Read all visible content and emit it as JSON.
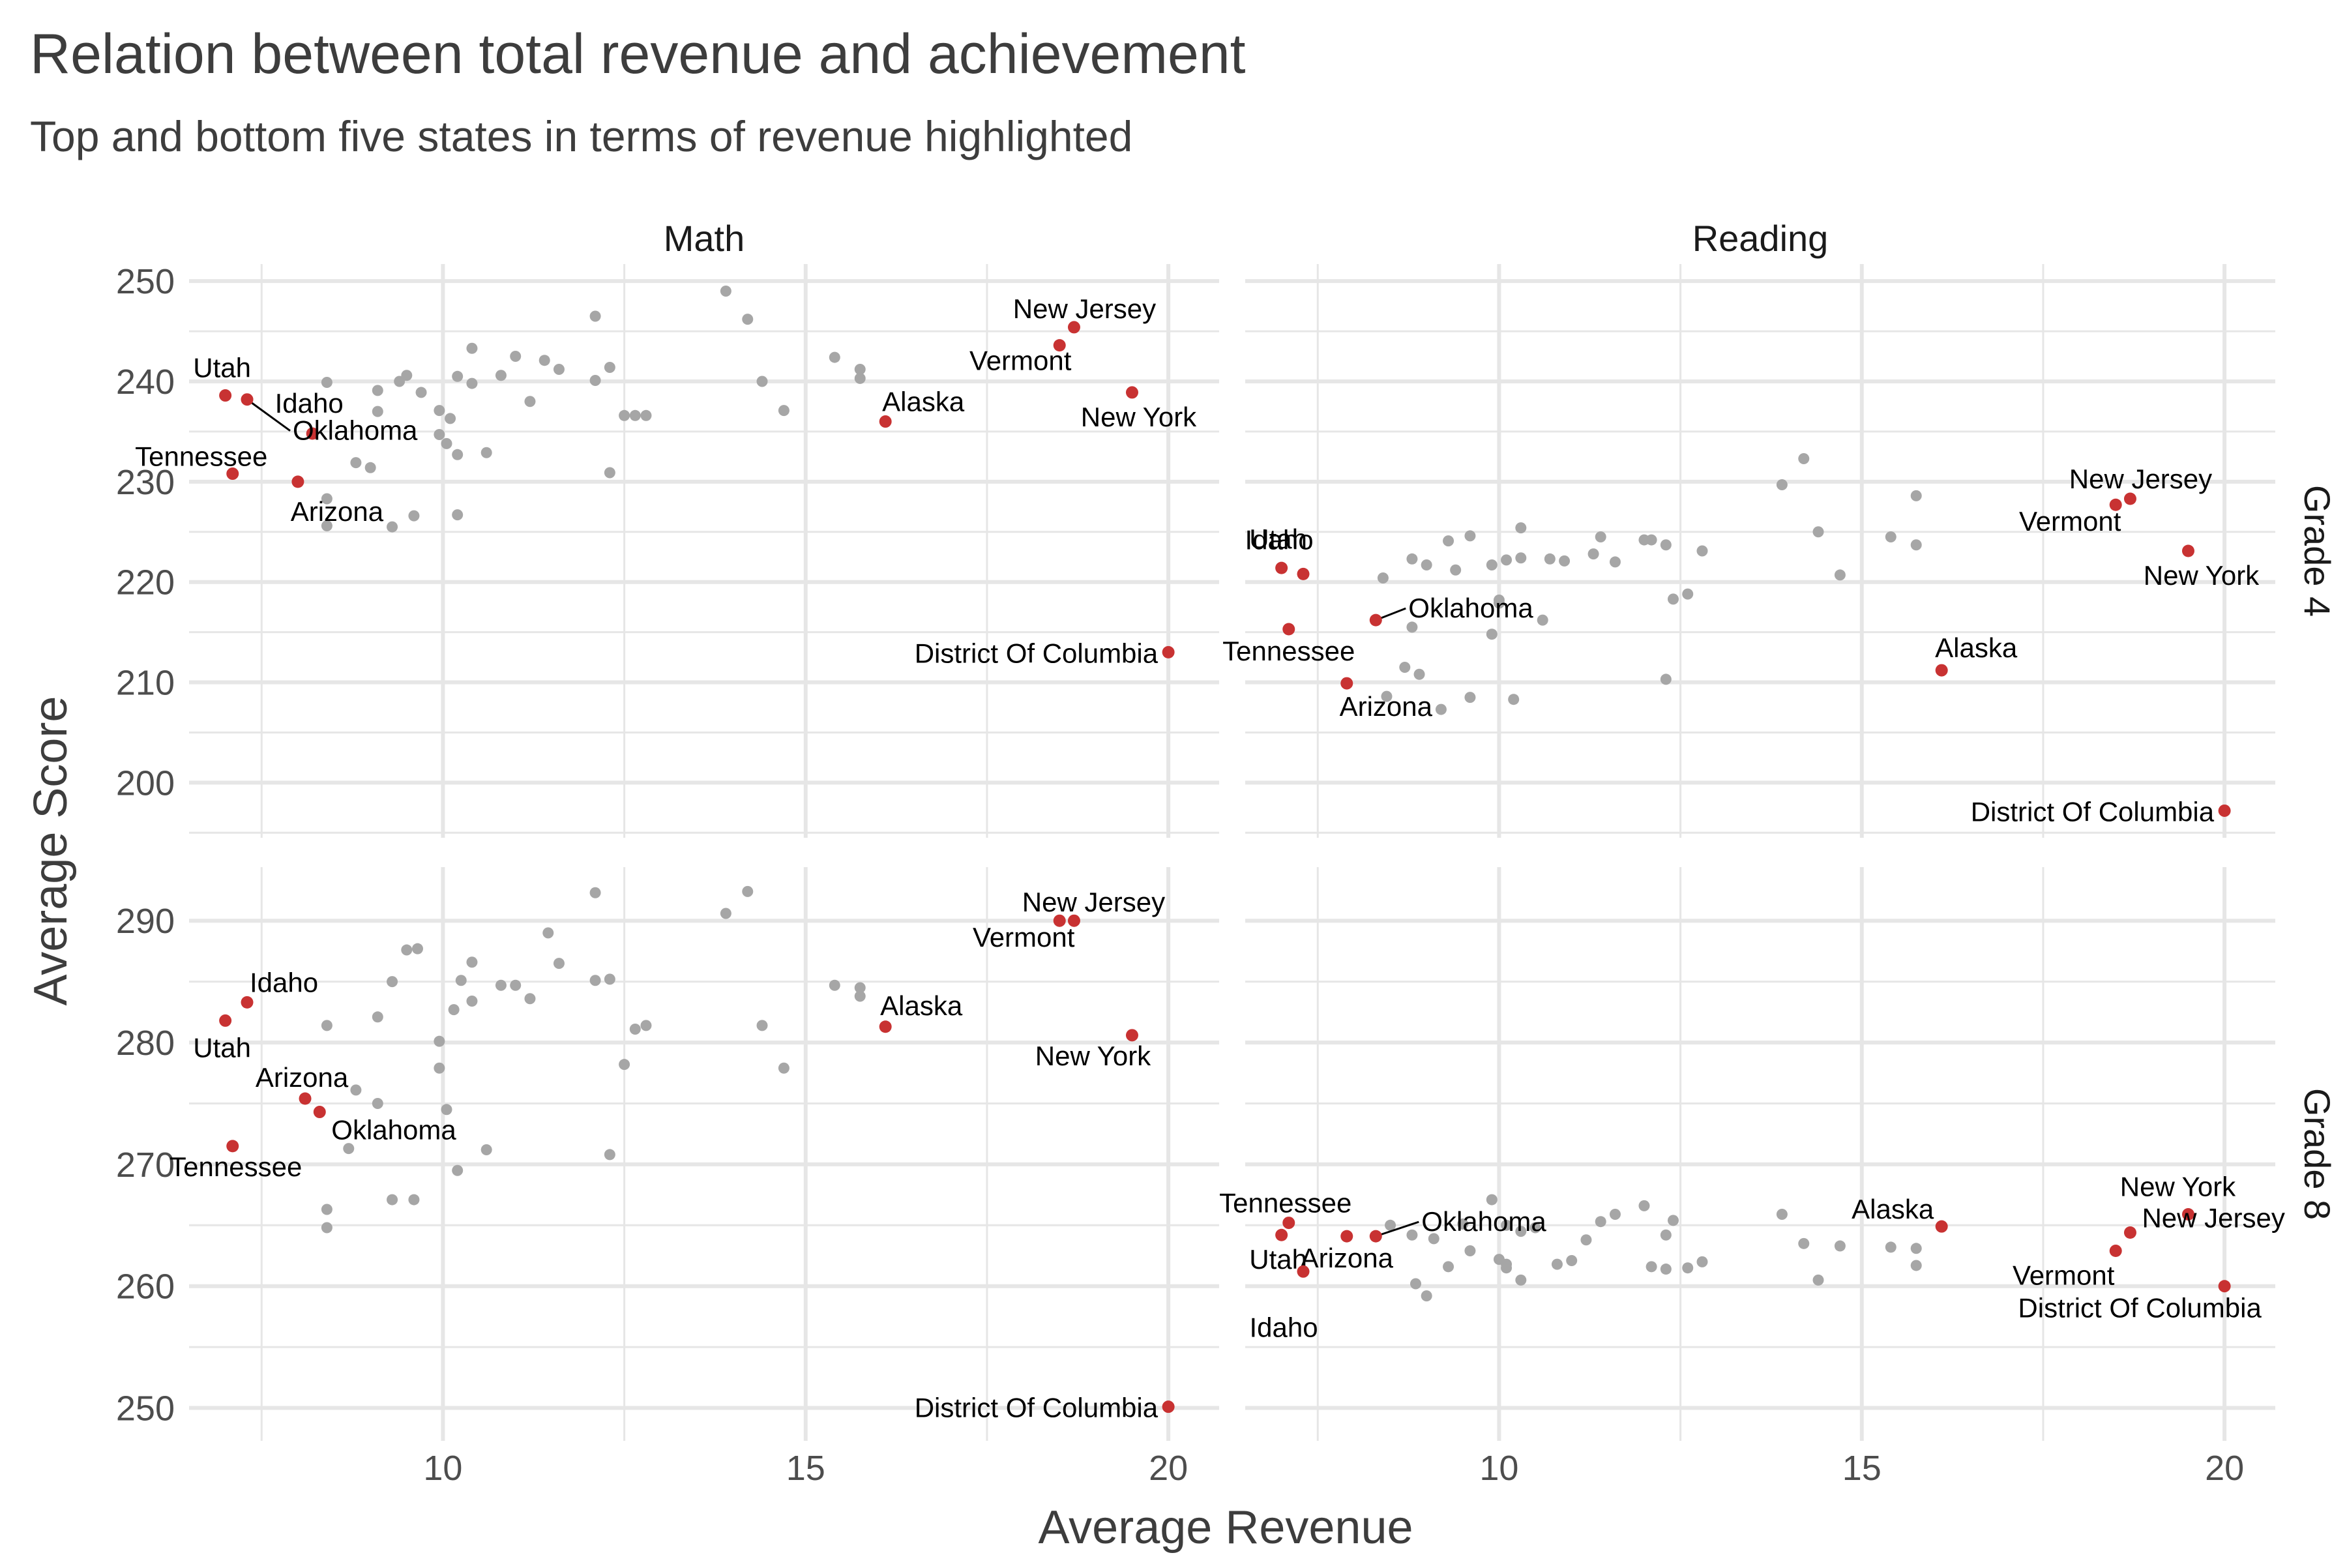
{
  "chart_data": {
    "type": "scatter",
    "title": "Relation between total revenue and achievement",
    "subtitle": "Top and bottom five states in terms of revenue highlighted",
    "xlabel": "Average Revenue",
    "ylabel": "Average Score",
    "colors": {
      "highlight": "#c83232",
      "other": "#a6a6a6",
      "text": "#3d3d3d",
      "grid": "#e6e6e6"
    },
    "x_ticks": [
      10,
      15,
      20
    ],
    "column_facets": [
      "Math",
      "Reading"
    ],
    "row_facets": [
      "Grade 4",
      "Grade 8"
    ],
    "panels": [
      {
        "column": "Math",
        "row": "Grade 4",
        "y_ticks": [
          200,
          210,
          220,
          230,
          240,
          250
        ],
        "highlighted": [
          {
            "label": "Utah",
            "x": 7.0,
            "y": 238.6
          },
          {
            "label": "Idaho",
            "x": 8.2,
            "y": 234.8
          },
          {
            "label": "Oklahoma",
            "x": 7.3,
            "y": 238.2
          },
          {
            "label": "Tennessee",
            "x": 7.1,
            "y": 230.8
          },
          {
            "label": "Arizona",
            "x": 8.0,
            "y": 230.0
          },
          {
            "label": "New Jersey",
            "x": 18.7,
            "y": 245.4
          },
          {
            "label": "Vermont",
            "x": 18.5,
            "y": 243.6
          },
          {
            "label": "New York",
            "x": 19.5,
            "y": 238.9
          },
          {
            "label": "Alaska",
            "x": 16.1,
            "y": 236.0
          },
          {
            "label": "District Of Columbia",
            "x": 20.0,
            "y": 213.0
          }
        ],
        "others": [
          [
            8.4,
            239.9
          ],
          [
            9.1,
            239.1
          ],
          [
            9.4,
            240.0
          ],
          [
            9.5,
            240.6
          ],
          [
            9.7,
            238.9
          ],
          [
            9.1,
            237.0
          ],
          [
            9.95,
            237.1
          ],
          [
            10.1,
            236.3
          ],
          [
            10.2,
            240.5
          ],
          [
            10.4,
            243.3
          ],
          [
            10.4,
            239.8
          ],
          [
            10.8,
            240.6
          ],
          [
            11.0,
            242.5
          ],
          [
            11.2,
            238.0
          ],
          [
            11.4,
            242.1
          ],
          [
            11.6,
            241.2
          ],
          [
            12.1,
            246.5
          ],
          [
            12.1,
            240.1
          ],
          [
            12.3,
            241.4
          ],
          [
            12.5,
            236.6
          ],
          [
            12.65,
            236.6
          ],
          [
            12.8,
            236.6
          ],
          [
            13.9,
            249.0
          ],
          [
            14.2,
            246.2
          ],
          [
            14.4,
            240.0
          ],
          [
            14.7,
            237.1
          ],
          [
            15.4,
            242.4
          ],
          [
            15.75,
            241.2
          ],
          [
            15.75,
            240.3
          ],
          [
            9.95,
            234.7
          ],
          [
            10.05,
            233.8
          ],
          [
            10.2,
            232.7
          ],
          [
            10.6,
            232.9
          ],
          [
            8.8,
            231.9
          ],
          [
            9.0,
            231.4
          ],
          [
            12.3,
            230.9
          ],
          [
            8.4,
            228.3
          ],
          [
            8.4,
            225.6
          ],
          [
            9.3,
            225.5
          ],
          [
            9.6,
            226.6
          ],
          [
            10.2,
            226.7
          ]
        ]
      },
      {
        "column": "Reading",
        "row": "Grade 4",
        "y_ticks": [
          200,
          210,
          220,
          230,
          240,
          250
        ],
        "highlighted": [
          {
            "label": "Utah",
            "x": 7.0,
            "y": 221.4
          },
          {
            "label": "Idaho",
            "x": 7.3,
            "y": 220.8
          },
          {
            "label": "Oklahoma",
            "x": 8.3,
            "y": 216.2
          },
          {
            "label": "Tennessee",
            "x": 7.1,
            "y": 215.3
          },
          {
            "label": "Arizona",
            "x": 7.9,
            "y": 209.9
          },
          {
            "label": "New Jersey",
            "x": 18.7,
            "y": 228.3
          },
          {
            "label": "Vermont",
            "x": 18.5,
            "y": 227.7
          },
          {
            "label": "New York",
            "x": 19.5,
            "y": 223.1
          },
          {
            "label": "Alaska",
            "x": 16.1,
            "y": 211.2
          },
          {
            "label": "District Of Columbia",
            "x": 20.0,
            "y": 197.2
          }
        ],
        "others": [
          [
            8.4,
            220.4
          ],
          [
            8.8,
            222.3
          ],
          [
            9.0,
            221.7
          ],
          [
            9.3,
            224.1
          ],
          [
            9.4,
            221.2
          ],
          [
            9.6,
            224.6
          ],
          [
            9.9,
            221.7
          ],
          [
            10.1,
            222.2
          ],
          [
            10.3,
            225.4
          ],
          [
            10.3,
            222.4
          ],
          [
            10.7,
            222.3
          ],
          [
            10.9,
            222.1
          ],
          [
            11.3,
            222.8
          ],
          [
            11.4,
            224.5
          ],
          [
            11.6,
            222.0
          ],
          [
            12.0,
            224.2
          ],
          [
            12.1,
            224.2
          ],
          [
            12.3,
            223.7
          ],
          [
            12.4,
            218.3
          ],
          [
            12.6,
            218.8
          ],
          [
            12.8,
            223.1
          ],
          [
            13.9,
            229.7
          ],
          [
            14.2,
            232.3
          ],
          [
            14.4,
            225.0
          ],
          [
            14.7,
            220.7
          ],
          [
            15.4,
            224.5
          ],
          [
            15.75,
            228.6
          ],
          [
            15.75,
            223.7
          ],
          [
            10.0,
            218.2
          ],
          [
            10.0,
            217.9
          ],
          [
            10.6,
            216.2
          ],
          [
            8.8,
            215.5
          ],
          [
            9.9,
            214.8
          ],
          [
            8.7,
            211.5
          ],
          [
            8.9,
            210.8
          ],
          [
            12.3,
            210.3
          ],
          [
            8.45,
            208.6
          ],
          [
            9.2,
            207.3
          ],
          [
            9.6,
            208.5
          ],
          [
            10.2,
            208.3
          ]
        ]
      },
      {
        "column": "Math",
        "row": "Grade 8",
        "y_ticks": [
          250,
          260,
          270,
          280,
          290
        ],
        "highlighted": [
          {
            "label": "Utah",
            "x": 7.0,
            "y": 281.8
          },
          {
            "label": "Idaho",
            "x": 7.3,
            "y": 283.3
          },
          {
            "label": "Arizona",
            "x": 8.1,
            "y": 275.4
          },
          {
            "label": "Oklahoma",
            "x": 8.3,
            "y": 274.3
          },
          {
            "label": "Tennessee",
            "x": 7.1,
            "y": 271.5
          },
          {
            "label": "New Jersey",
            "x": 18.7,
            "y": 290.0
          },
          {
            "label": "Vermont",
            "x": 18.5,
            "y": 290.0
          },
          {
            "label": "Alaska",
            "x": 16.1,
            "y": 281.3
          },
          {
            "label": "New York",
            "x": 19.5,
            "y": 280.6
          },
          {
            "label": "District Of Columbia",
            "x": 20.0,
            "y": 250.1
          }
        ],
        "others": [
          [
            12.1,
            292.3
          ],
          [
            14.2,
            292.4
          ],
          [
            13.9,
            290.6
          ],
          [
            11.45,
            289.0
          ],
          [
            9.5,
            287.6
          ],
          [
            9.65,
            287.7
          ],
          [
            10.4,
            286.6
          ],
          [
            11.6,
            286.5
          ],
          [
            9.3,
            285.0
          ],
          [
            10.25,
            285.1
          ],
          [
            10.8,
            284.7
          ],
          [
            11.0,
            284.7
          ],
          [
            12.1,
            285.1
          ],
          [
            12.3,
            285.2
          ],
          [
            15.4,
            284.7
          ],
          [
            15.75,
            284.5
          ],
          [
            15.75,
            283.8
          ],
          [
            10.4,
            283.4
          ],
          [
            11.2,
            283.6
          ],
          [
            10.15,
            282.7
          ],
          [
            9.1,
            282.1
          ],
          [
            8.4,
            281.4
          ],
          [
            12.65,
            281.1
          ],
          [
            12.8,
            281.4
          ],
          [
            14.4,
            281.4
          ],
          [
            9.95,
            280.1
          ],
          [
            9.95,
            277.9
          ],
          [
            12.5,
            278.2
          ],
          [
            14.7,
            277.9
          ],
          [
            8.8,
            276.1
          ],
          [
            9.1,
            275.0
          ],
          [
            10.05,
            274.5
          ],
          [
            8.7,
            271.3
          ],
          [
            10.6,
            271.2
          ],
          [
            12.3,
            270.8
          ],
          [
            10.2,
            269.5
          ],
          [
            9.3,
            267.1
          ],
          [
            9.6,
            267.1
          ],
          [
            8.4,
            266.3
          ],
          [
            8.4,
            264.8
          ]
        ]
      },
      {
        "column": "Reading",
        "row": "Grade 8",
        "y_ticks": [
          250,
          260,
          270,
          280,
          290
        ],
        "highlighted": [
          {
            "label": "Tennessee",
            "x": 7.1,
            "y": 265.2
          },
          {
            "label": "Utah",
            "x": 7.0,
            "y": 264.2
          },
          {
            "label": "Oklahoma",
            "x": 8.3,
            "y": 264.1
          },
          {
            "label": "Arizona",
            "x": 7.9,
            "y": 264.1
          },
          {
            "label": "Idaho",
            "x": 7.3,
            "y": 261.2
          },
          {
            "label": "Alaska",
            "x": 16.1,
            "y": 264.9
          },
          {
            "label": "New York",
            "x": 19.5,
            "y": 265.9
          },
          {
            "label": "New Jersey",
            "x": 18.7,
            "y": 264.4
          },
          {
            "label": "Vermont",
            "x": 18.5,
            "y": 262.9
          },
          {
            "label": "District Of Columbia",
            "x": 20.0,
            "y": 260.0
          }
        ],
        "others": [
          [
            9.9,
            267.1
          ],
          [
            12.0,
            266.6
          ],
          [
            13.9,
            265.9
          ],
          [
            11.6,
            265.9
          ],
          [
            11.4,
            265.3
          ],
          [
            12.4,
            265.4
          ],
          [
            8.5,
            265.0
          ],
          [
            8.8,
            264.2
          ],
          [
            9.5,
            265.1
          ],
          [
            10.1,
            265.0
          ],
          [
            10.3,
            264.5
          ],
          [
            10.5,
            264.8
          ],
          [
            9.1,
            263.9
          ],
          [
            11.2,
            263.8
          ],
          [
            12.3,
            264.2
          ],
          [
            14.2,
            263.5
          ],
          [
            14.7,
            263.3
          ],
          [
            15.4,
            263.2
          ],
          [
            15.75,
            263.1
          ],
          [
            9.6,
            262.9
          ],
          [
            10.0,
            262.2
          ],
          [
            10.1,
            261.8
          ],
          [
            9.3,
            261.6
          ],
          [
            10.1,
            261.5
          ],
          [
            10.8,
            261.8
          ],
          [
            11.0,
            262.1
          ],
          [
            12.1,
            261.6
          ],
          [
            12.3,
            261.4
          ],
          [
            12.6,
            261.5
          ],
          [
            12.8,
            262.0
          ],
          [
            15.75,
            261.7
          ],
          [
            8.85,
            260.2
          ],
          [
            10.3,
            260.5
          ],
          [
            14.4,
            260.5
          ],
          [
            9.0,
            259.2
          ]
        ]
      }
    ]
  }
}
